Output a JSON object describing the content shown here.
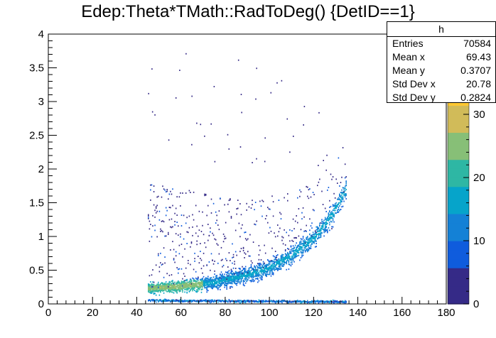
{
  "title": "Edep:Theta*TMath::RadToDeg() {DetID==1}",
  "stats": {
    "name": "h",
    "rows": [
      {
        "label": "Entries",
        "value": "70584"
      },
      {
        "label": "Mean x",
        "value": "69.43"
      },
      {
        "label": "Mean y",
        "value": "0.3707"
      },
      {
        "label": "Std Dev x",
        "value": "20.78"
      },
      {
        "label": "Std Dev y",
        "value": "0.2824"
      }
    ]
  },
  "chart_data": {
    "type": "heatmap",
    "title": "Edep:Theta*TMath::RadToDeg() {DetID==1}",
    "xlabel": "",
    "ylabel": "",
    "xlim": [
      0,
      180
    ],
    "ylim": [
      0,
      4
    ],
    "zlim": [
      0,
      40
    ],
    "x_ticks": [
      "0",
      "20",
      "40",
      "60",
      "80",
      "100",
      "120",
      "140",
      "160",
      "180"
    ],
    "y_ticks": [
      "0",
      "0.5",
      "1",
      "1.5",
      "2",
      "2.5",
      "3",
      "3.5",
      "4"
    ],
    "z_ticks": [
      "0",
      "10",
      "20",
      "30"
    ],
    "x_data_range": [
      45,
      135
    ],
    "band_main": [
      {
        "x": 45,
        "y": 0.22
      },
      {
        "x": 60,
        "y": 0.25
      },
      {
        "x": 75,
        "y": 0.31
      },
      {
        "x": 90,
        "y": 0.42
      },
      {
        "x": 100,
        "y": 0.53
      },
      {
        "x": 110,
        "y": 0.71
      },
      {
        "x": 120,
        "y": 0.97
      },
      {
        "x": 128,
        "y": 1.3
      },
      {
        "x": 135,
        "y": 1.72
      }
    ],
    "band_low": [
      {
        "x": 45,
        "y": 0.04
      },
      {
        "x": 90,
        "y": 0.03
      },
      {
        "x": 135,
        "y": 0.02
      }
    ],
    "colors": {
      "palette": [
        "#352a87",
        "#0f5cdd",
        "#1481d6",
        "#06a4ca",
        "#2eb7a4",
        "#87bf77",
        "#d1bb59",
        "#fec832",
        "#f9fb0e"
      ],
      "background": "#ffffff",
      "axis": "#000000"
    }
  }
}
